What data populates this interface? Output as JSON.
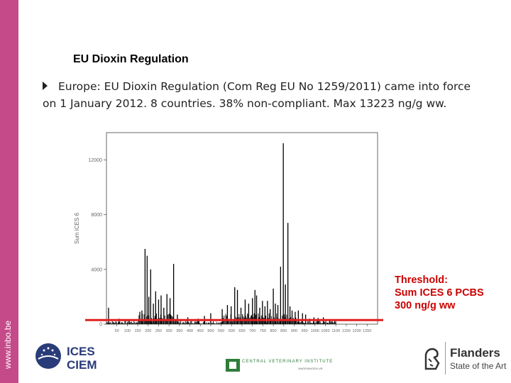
{
  "sidebar": {
    "url": "www.inbo.be",
    "color": "#c44a8a"
  },
  "slide": {
    "title": "EU Dioxin Regulation",
    "bullet": "Europe:  EU Dioxin Regulation (Com Reg EU No 1259/2011) came into force on 1 January 2012. 8 countries. 38% non-compliant. Max 13223 ng/g ww."
  },
  "annotation": {
    "line1": "Threshold:",
    "line2": "Sum ICES 6 PCBS",
    "line3": "300 ng/g ww",
    "color": "#cc0000"
  },
  "chart_data": {
    "type": "bar",
    "ylabel": "Sum ICES 6",
    "ylim": [
      0,
      14000
    ],
    "yticks": [
      0,
      4000,
      8000,
      12000
    ],
    "yticklabels": [
      "0",
      "4000",
      "8000",
      "12000"
    ],
    "xlim": [
      0,
      1300
    ],
    "xticks": [
      50,
      100,
      150,
      200,
      250,
      300,
      350,
      400,
      450,
      500,
      550,
      600,
      650,
      700,
      750,
      800,
      850,
      900,
      950,
      1000,
      1050,
      1100,
      1150,
      1200,
      1250
    ],
    "xticklabels": [
      "50",
      "100",
      "150",
      "200",
      "250",
      "300",
      "350",
      "400",
      "450",
      "500",
      "550",
      "600",
      "650",
      "700",
      "750",
      "800",
      "850",
      "900",
      "950",
      "1000",
      "1050",
      "1100",
      "1150",
      "1200",
      "1250"
    ],
    "threshold": 300,
    "threshold_color": "#e02020",
    "bar_color": "#000000",
    "peaks": [
      {
        "x": 10,
        "y": 1200
      },
      {
        "x": 60,
        "y": 400
      },
      {
        "x": 110,
        "y": 300
      },
      {
        "x": 160,
        "y": 900
      },
      {
        "x": 170,
        "y": 1000
      },
      {
        "x": 185,
        "y": 5500
      },
      {
        "x": 195,
        "y": 5000
      },
      {
        "x": 203,
        "y": 2000
      },
      {
        "x": 212,
        "y": 4000
      },
      {
        "x": 225,
        "y": 1500
      },
      {
        "x": 236,
        "y": 2400
      },
      {
        "x": 250,
        "y": 1800
      },
      {
        "x": 262,
        "y": 2100
      },
      {
        "x": 275,
        "y": 1200
      },
      {
        "x": 290,
        "y": 2200
      },
      {
        "x": 305,
        "y": 1900
      },
      {
        "x": 322,
        "y": 4400
      },
      {
        "x": 340,
        "y": 700
      },
      {
        "x": 390,
        "y": 500
      },
      {
        "x": 440,
        "y": 400
      },
      {
        "x": 470,
        "y": 600
      },
      {
        "x": 500,
        "y": 800
      },
      {
        "x": 555,
        "y": 1100
      },
      {
        "x": 580,
        "y": 1400
      },
      {
        "x": 598,
        "y": 1300
      },
      {
        "x": 615,
        "y": 2700
      },
      {
        "x": 628,
        "y": 2500
      },
      {
        "x": 645,
        "y": 1200
      },
      {
        "x": 665,
        "y": 1800
      },
      {
        "x": 682,
        "y": 1500
      },
      {
        "x": 700,
        "y": 1900
      },
      {
        "x": 712,
        "y": 2500
      },
      {
        "x": 720,
        "y": 2100
      },
      {
        "x": 735,
        "y": 1200
      },
      {
        "x": 748,
        "y": 1700
      },
      {
        "x": 760,
        "y": 1300
      },
      {
        "x": 772,
        "y": 1700
      },
      {
        "x": 785,
        "y": 1100
      },
      {
        "x": 800,
        "y": 2600
      },
      {
        "x": 810,
        "y": 1500
      },
      {
        "x": 822,
        "y": 1400
      },
      {
        "x": 835,
        "y": 4200
      },
      {
        "x": 848,
        "y": 13223
      },
      {
        "x": 858,
        "y": 2900
      },
      {
        "x": 870,
        "y": 7400
      },
      {
        "x": 880,
        "y": 1300
      },
      {
        "x": 890,
        "y": 1000
      },
      {
        "x": 905,
        "y": 900
      },
      {
        "x": 920,
        "y": 1000
      },
      {
        "x": 940,
        "y": 800
      },
      {
        "x": 955,
        "y": 700
      },
      {
        "x": 975,
        "y": 400
      },
      {
        "x": 995,
        "y": 500
      },
      {
        "x": 1015,
        "y": 450
      },
      {
        "x": 1040,
        "y": 500
      },
      {
        "x": 1070,
        "y": 300
      },
      {
        "x": 1095,
        "y": 250
      }
    ]
  },
  "logos": {
    "ices_line1": "ICES",
    "ices_line2": "CIEM",
    "cvi_text": "CENTRAL VETERINARY INSTITUTE",
    "cvi_sub": "WAGENINGEN UR",
    "flanders_title": "Flanders",
    "flanders_sub": "State of the Art"
  }
}
